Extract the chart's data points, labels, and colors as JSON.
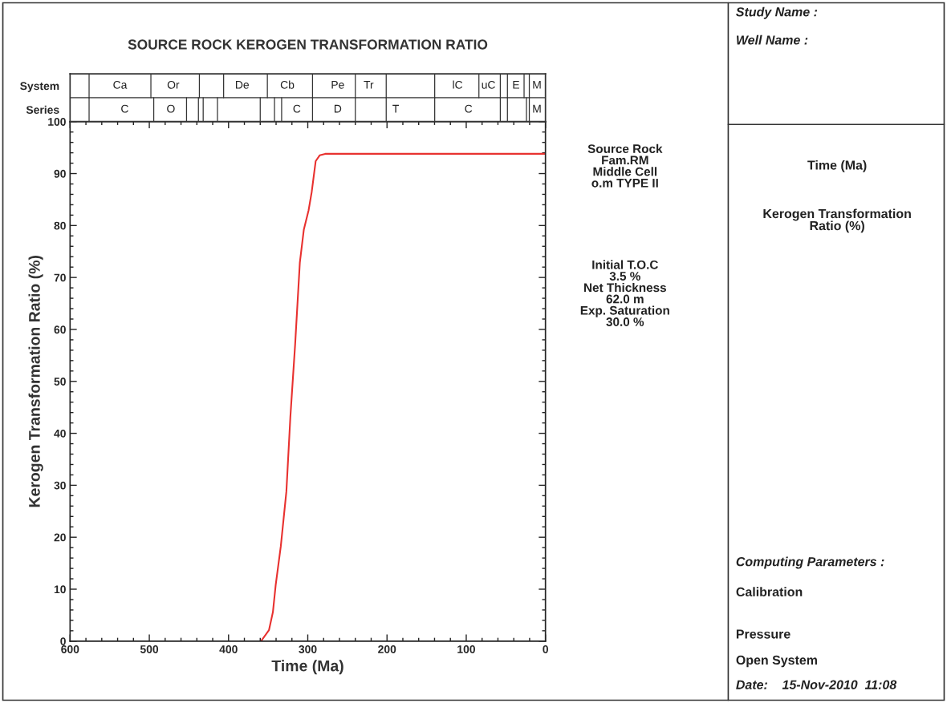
{
  "chart_data": [
    {
      "type": "line",
      "title": "SOURCE ROCK KEROGEN TRANSFORMATION RATIO",
      "xlabel": "Time (Ma)",
      "ylabel": "Kerogen Transformation Ratio (%)",
      "x": [
        359,
        349,
        344,
        340.5,
        334,
        327,
        322,
        316,
        310,
        305,
        299,
        295,
        290,
        285,
        278,
        0
      ],
      "series": [
        {
          "color": "#e8312f",
          "values": [
            0,
            2.1,
            5.6,
            10.8,
            18.3,
            28.8,
            43.1,
            57,
            72.9,
            79.2,
            82.9,
            86.5,
            92.4,
            93.5,
            93.8,
            93.8
          ]
        }
      ],
      "xlim": [
        600,
        0
      ],
      "ylim": [
        0,
        100
      ],
      "xticks": [
        600,
        {
          "value": 580,
          "label": null
        },
        {
          "value": 560,
          "label": null
        },
        {
          "value": 540,
          "label": null
        },
        {
          "value": 520,
          "label": null
        },
        500,
        {
          "value": 480,
          "label": null
        },
        {
          "value": 460,
          "label": null
        },
        {
          "value": 440,
          "label": null
        },
        {
          "value": 420,
          "label": null
        },
        400,
        {
          "value": 380,
          "label": null
        },
        {
          "value": 360,
          "label": null
        },
        {
          "value": 340,
          "label": null
        },
        {
          "value": 320,
          "label": null
        },
        300,
        {
          "value": 280,
          "label": null
        },
        {
          "value": 260,
          "label": null
        },
        {
          "value": 240,
          "label": null
        },
        {
          "value": 220,
          "label": null
        },
        200,
        {
          "value": 180,
          "label": null
        },
        {
          "value": 160,
          "label": null
        },
        {
          "value": 140,
          "label": null
        },
        {
          "value": 120,
          "label": null
        },
        100,
        {
          "value": 80,
          "label": null
        },
        {
          "value": 60,
          "label": null
        },
        {
          "value": 40,
          "label": null
        },
        {
          "value": 20,
          "label": null
        },
        0
      ],
      "yticks": [
        0,
        {
          "value": 2,
          "label": null
        },
        {
          "value": 4,
          "label": null
        },
        {
          "value": 6,
          "label": null
        },
        {
          "value": 8,
          "label": null
        },
        10,
        {
          "value": 12,
          "label": null
        },
        {
          "value": 14,
          "label": null
        },
        {
          "value": 16,
          "label": null
        },
        {
          "value": 18,
          "label": null
        },
        20,
        {
          "value": 22,
          "label": null
        },
        {
          "value": 24,
          "label": null
        },
        {
          "value": 26,
          "label": null
        },
        {
          "value": 28,
          "label": null
        },
        30,
        {
          "value": 32,
          "label": null
        },
        {
          "value": 34,
          "label": null
        },
        {
          "value": 36,
          "label": null
        },
        {
          "value": 38,
          "label": null
        },
        40,
        {
          "value": 42,
          "label": null
        },
        {
          "value": 44,
          "label": null
        },
        {
          "value": 46,
          "label": null
        },
        {
          "value": 48,
          "label": null
        },
        50,
        {
          "value": 52,
          "label": null
        },
        {
          "value": 54,
          "label": null
        },
        {
          "value": 56,
          "label": null
        },
        {
          "value": 58,
          "label": null
        },
        60,
        {
          "value": 62,
          "label": null
        },
        {
          "value": 64,
          "label": null
        },
        {
          "value": 66,
          "label": null
        },
        {
          "value": 68,
          "label": null
        },
        70,
        {
          "value": 72,
          "label": null
        },
        {
          "value": 74,
          "label": null
        },
        {
          "value": 76,
          "label": null
        },
        {
          "value": 78,
          "label": null
        },
        80,
        {
          "value": 82,
          "label": null
        },
        {
          "value": 84,
          "label": null
        },
        {
          "value": 86,
          "label": null
        },
        {
          "value": 88,
          "label": null
        },
        90,
        {
          "value": 92,
          "label": null
        },
        {
          "value": 94,
          "label": null
        },
        {
          "value": 96,
          "label": null
        },
        {
          "value": 98,
          "label": null
        },
        100
      ],
      "annotations": [
        "Source Rock\nFam.RM\nMiddle Cell\no.m TYPE II",
        "Initial T.O.C\n3.5 %\nNet Thickness\n62.0 m\nExp. Saturation\n30.0 %"
      ]
    },
    {
      "type": "other",
      "categories": [
        "System",
        "Series"
      ],
      "annotations": [
        "Ca",
        "Or",
        "De",
        "Cb",
        "Pe",
        "Tr",
        "lC",
        "uC",
        "E",
        "M",
        "C",
        "O",
        "C",
        "D",
        "T",
        "C",
        "M"
      ]
    },
    {
      "type": "other",
      "annotations": [
        "Study Name :",
        "Well Name :",
        "Time (Ma)",
        "Kerogen Transformation\nRatio (%)",
        "Computing Parameters :",
        "Calibration",
        "Pressure",
        "Open System",
        "Date:    15-Nov-2010  11:08"
      ]
    }
  ]
}
